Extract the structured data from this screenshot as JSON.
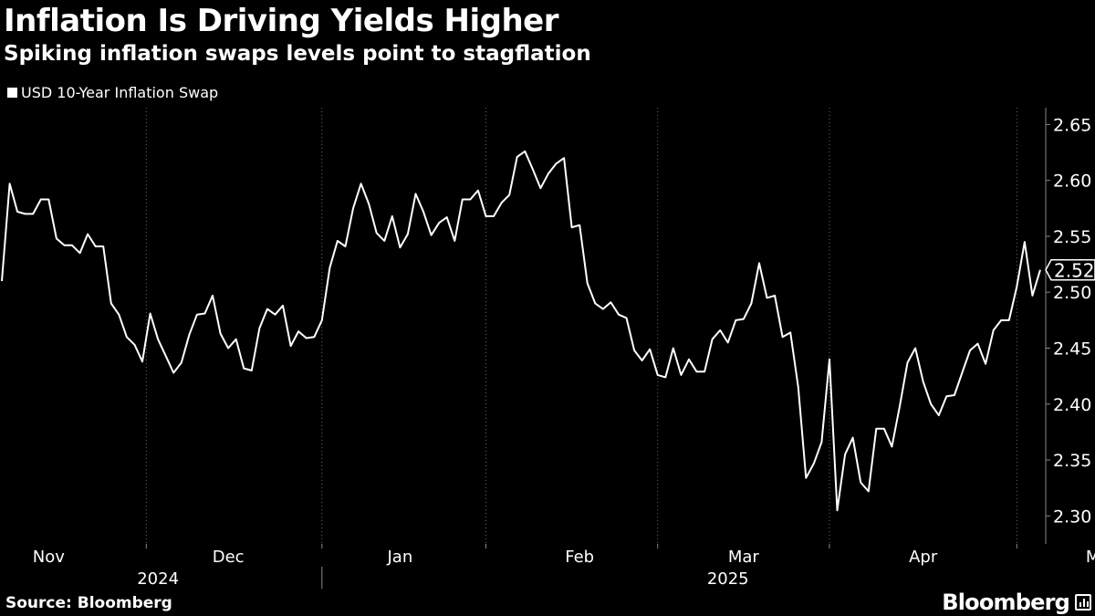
{
  "chart_data": {
    "type": "line",
    "title": "Inflation Is Driving Yields Higher",
    "subtitle": "Spiking inflation swaps levels point to stagflation",
    "series": [
      {
        "name": "USD 10-Year Inflation Swap",
        "color": "#ffffff",
        "values": [
          2.51,
          2.597,
          2.572,
          2.57,
          2.57,
          2.583,
          2.583,
          2.548,
          2.542,
          2.542,
          2.535,
          2.552,
          2.541,
          2.541,
          2.49,
          2.48,
          2.46,
          2.453,
          2.438,
          2.481,
          2.458,
          2.443,
          2.428,
          2.437,
          2.462,
          2.48,
          2.481,
          2.497,
          2.463,
          2.45,
          2.458,
          2.432,
          2.43,
          2.468,
          2.485,
          2.48,
          2.488,
          2.452,
          2.465,
          2.459,
          2.46,
          2.475,
          2.522,
          2.546,
          2.541,
          2.575,
          2.597,
          2.579,
          2.553,
          2.546,
          2.568,
          2.54,
          2.552,
          2.588,
          2.572,
          2.551,
          2.562,
          2.567,
          2.546,
          2.583,
          2.583,
          2.591,
          2.568,
          2.568,
          2.58,
          2.587,
          2.621,
          2.626,
          2.61,
          2.593,
          2.606,
          2.615,
          2.62,
          2.558,
          2.56,
          2.508,
          2.49,
          2.485,
          2.491,
          2.48,
          2.477,
          2.448,
          2.439,
          2.449,
          2.426,
          2.424,
          2.45,
          2.426,
          2.44,
          2.429,
          2.429,
          2.458,
          2.466,
          2.455,
          2.475,
          2.476,
          2.49,
          2.526,
          2.495,
          2.497,
          2.46,
          2.464,
          2.415,
          2.334,
          2.347,
          2.366,
          2.44,
          2.305,
          2.355,
          2.37,
          2.33,
          2.322,
          2.378,
          2.378,
          2.362,
          2.398,
          2.437,
          2.45,
          2.42,
          2.4,
          2.39,
          2.407,
          2.408,
          2.428,
          2.448,
          2.454,
          2.436,
          2.466,
          2.475,
          2.475,
          2.505,
          2.545,
          2.497,
          2.52
        ]
      }
    ],
    "last_value_label": "2.52",
    "ylim": [
      2.275,
      2.665
    ],
    "yticks": [
      2.3,
      2.35,
      2.4,
      2.45,
      2.5,
      2.55,
      2.6,
      2.65
    ],
    "ytick_labels": [
      "2.30",
      "2.35",
      "2.40",
      "2.45",
      "2.50",
      "2.55",
      "2.60",
      "2.65"
    ],
    "month_labels": [
      {
        "label": "Nov",
        "index": 6
      },
      {
        "label": "Dec",
        "index": 29
      },
      {
        "label": "Jan",
        "index": 51
      },
      {
        "label": "Feb",
        "index": 74
      },
      {
        "label": "Mar",
        "index": 95
      },
      {
        "label": "Apr",
        "index": 118
      },
      {
        "label": "May",
        "index": 141
      }
    ],
    "month_boundaries": [
      18.5,
      41,
      62,
      84,
      106,
      130
    ],
    "year_labels": [
      {
        "label": "2024",
        "index": 20
      },
      {
        "label": "2025",
        "index": 93
      }
    ],
    "year_boundary_index": 41,
    "xlabel": "",
    "ylabel": "",
    "grid": true,
    "legend_position": "top-left"
  },
  "source": "Source: Bloomberg",
  "brand": "Bloomberg"
}
